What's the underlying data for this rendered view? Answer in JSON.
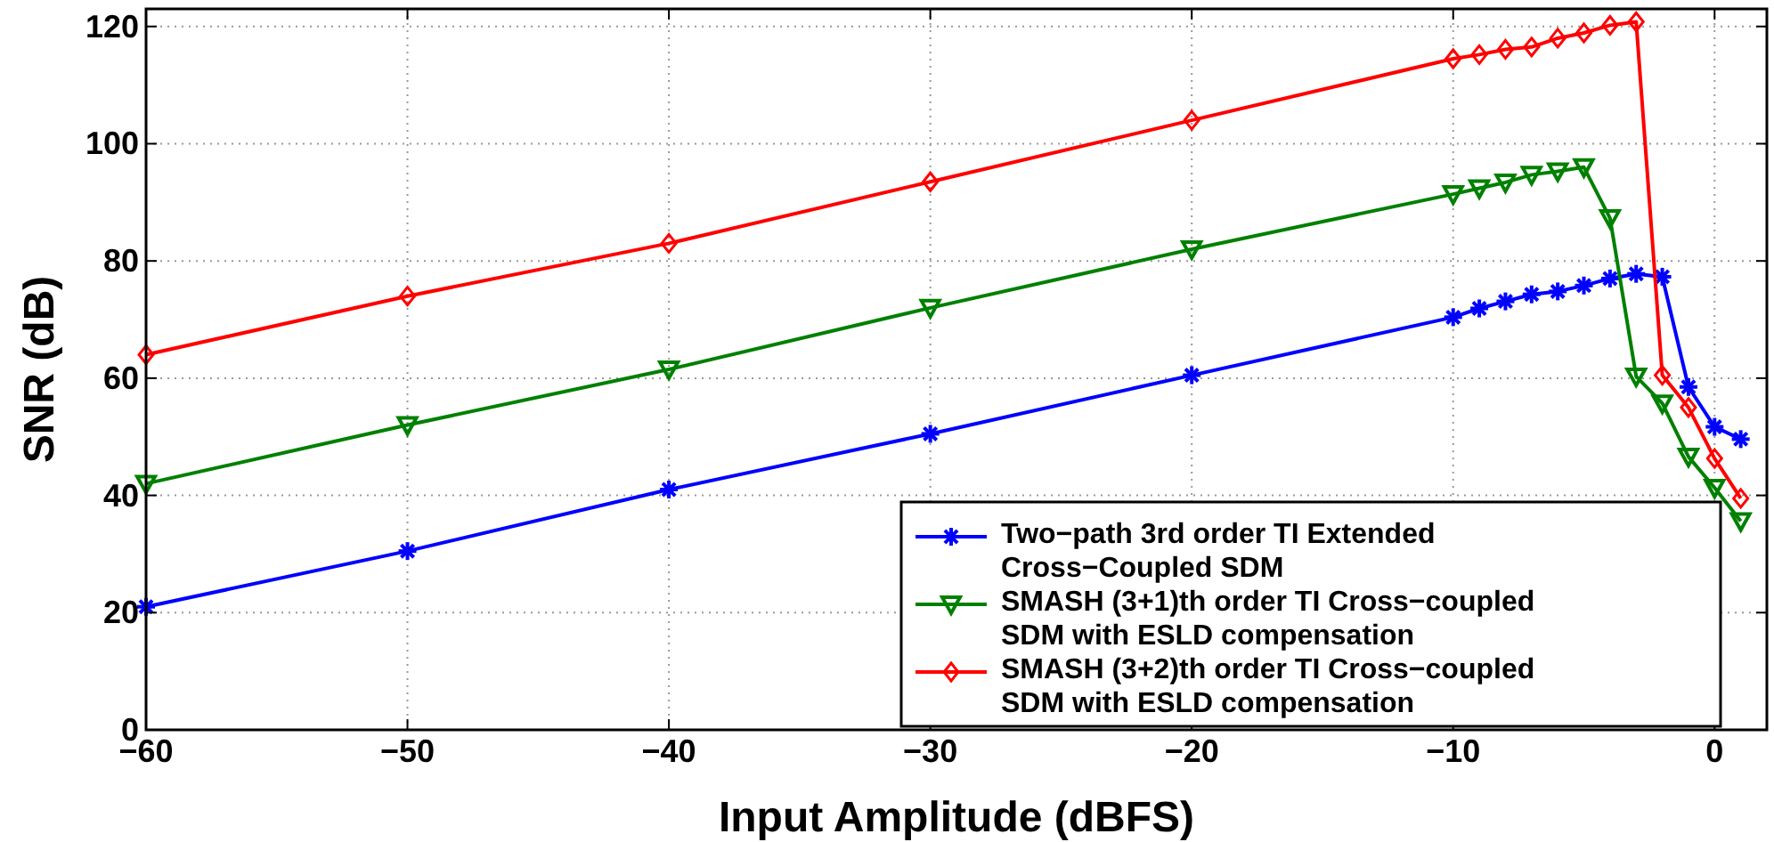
{
  "chart_data": {
    "type": "line",
    "xlabel": "Input Amplitude (dBFS)",
    "ylabel": "SNR (dB)",
    "x": [
      -60,
      -50,
      -40,
      -30,
      -20,
      -10,
      -9,
      -8,
      -7,
      -6,
      -5,
      -4,
      -3,
      -2,
      -1,
      0,
      1
    ],
    "series": [
      {
        "name": "Two−path 3rd order TI Extended Cross−Coupled SDM",
        "color": "#0000ff",
        "marker": "cross",
        "values": [
          21,
          30.5,
          41,
          50.5,
          60.5,
          70.4,
          71.9,
          73.1,
          74.3,
          74.8,
          75.8,
          77,
          77.8,
          77.3,
          58.5,
          51.7,
          49.6
        ]
      },
      {
        "name": "SMASH (3+1)th order TI Cross−coupled SDM with ESLD compensation",
        "color": "#008000",
        "marker": "triangle",
        "values": [
          42,
          52,
          61.5,
          72,
          82,
          91.4,
          92.4,
          93.4,
          94.7,
          95.3,
          96,
          87.3,
          60.3,
          55.7,
          46.6,
          41.3,
          35.6
        ]
      },
      {
        "name": "SMASH (3+2)th order TI Cross−coupled SDM with ESLD compensation",
        "color": "#ff0000",
        "marker": "diamond",
        "values": [
          64,
          74,
          83,
          93.5,
          104,
          114.5,
          115.2,
          116.1,
          116.5,
          118,
          118.9,
          120.2,
          120.8,
          60.5,
          55,
          46.3,
          39.5
        ]
      }
    ],
    "xlim": [
      -60,
      2
    ],
    "xticks": [
      {
        "value": -60,
        "label": "−60"
      },
      {
        "value": -50,
        "label": "−50"
      },
      {
        "value": -40,
        "label": "−40"
      },
      {
        "value": -30,
        "label": "−30"
      },
      {
        "value": -20,
        "label": "−20"
      },
      {
        "value": -10,
        "label": "−10"
      },
      0
    ],
    "ylim": [
      0,
      123
    ],
    "yticks": [
      0,
      20,
      40,
      60,
      80,
      100,
      120
    ],
    "grid": true,
    "legend": "bottom right",
    "line_style": "solid"
  }
}
